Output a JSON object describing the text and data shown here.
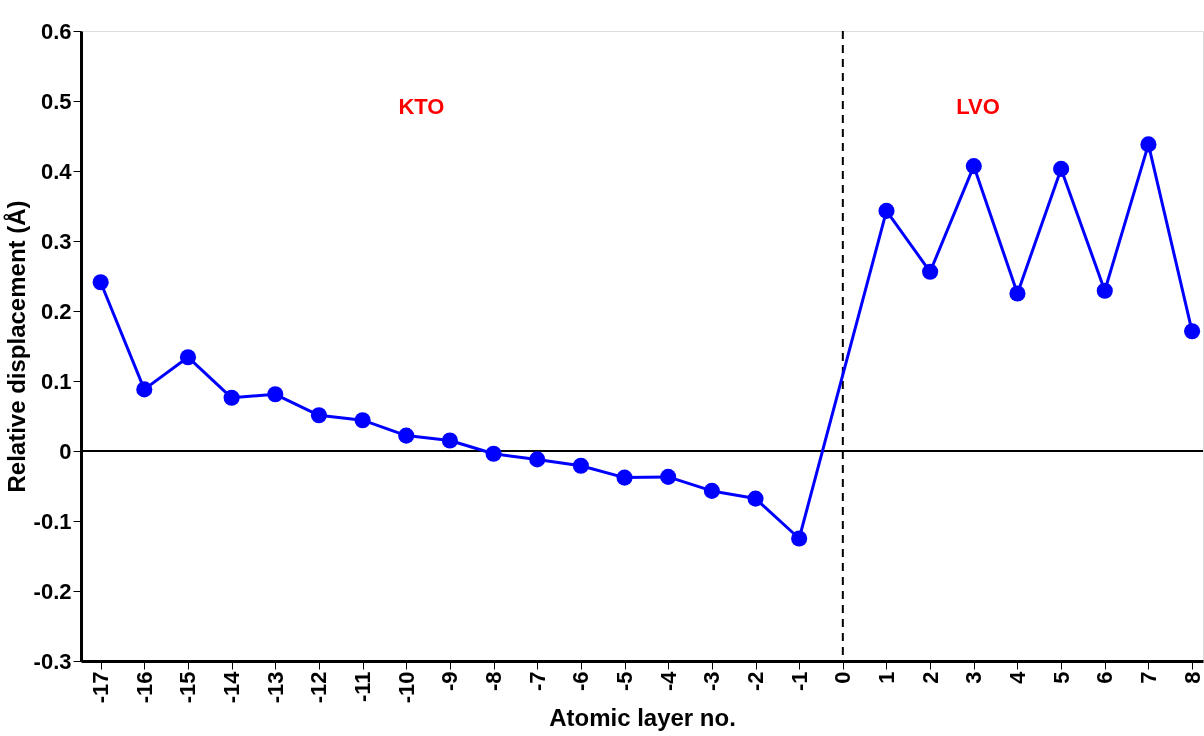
{
  "chart_data": {
    "type": "line",
    "xlabel": "Atomic layer no.",
    "ylabel": "Relative displacement (Å)",
    "annotations": [
      "KTO",
      "LVO"
    ],
    "x": [
      -17,
      -16,
      -15,
      -14,
      -13,
      -12,
      -11,
      -10,
      -9,
      -8,
      -7,
      -6,
      -5,
      -4,
      -3,
      -2,
      -1,
      1,
      2,
      3,
      4,
      5,
      6,
      7,
      8
    ],
    "series": [
      {
        "color": "#0000ff",
        "values": [
          0.241,
          0.088,
          0.134,
          0.076,
          0.081,
          0.051,
          0.044,
          0.022,
          0.015,
          -0.004,
          -0.012,
          -0.021,
          -0.038,
          -0.037,
          -0.057,
          -0.068,
          -0.125,
          0.343,
          0.256,
          0.407,
          0.225,
          0.403,
          0.229,
          0.438,
          0.171
        ]
      }
    ],
    "xlim": [
      -17.45,
      8.25
    ],
    "xticks": [
      -17,
      -16,
      -15,
      -14,
      -13,
      -12,
      -11,
      -10,
      -9,
      -8,
      -7,
      -6,
      -5,
      -4,
      -3,
      -2,
      -1,
      0,
      1,
      2,
      3,
      4,
      5,
      6,
      7,
      8
    ],
    "ylim": [
      -0.3,
      0.6
    ],
    "yticks": [
      -0.3,
      -0.2,
      -0.1,
      0,
      0.1,
      0.2,
      0.3,
      0.4,
      0.5,
      0.6
    ],
    "ref_lines": [
      {
        "axis": "y",
        "value": 0,
        "color": "#000000",
        "line_style": "solid"
      },
      {
        "axis": "x",
        "value": 0,
        "color": "#000000",
        "line_style": "dashed"
      }
    ],
    "marker": "circle",
    "line_style": "solid",
    "grid": false
  }
}
